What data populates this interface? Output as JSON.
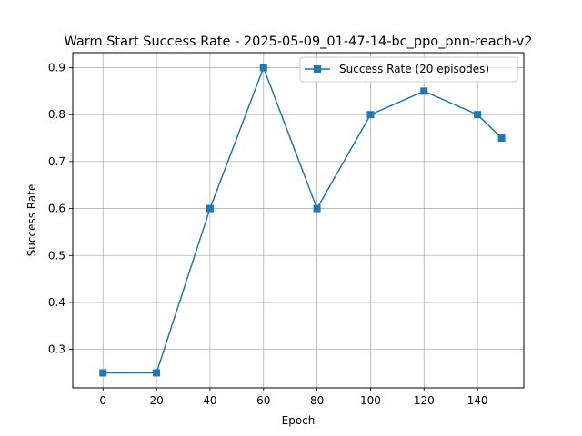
{
  "chart_data": {
    "type": "line",
    "title": "Warm Start Success Rate - 2025-05-09_01-47-14-bc_ppo_pnn-reach-v2",
    "xlabel": "Epoch",
    "ylabel": "Success Rate",
    "xlim": [
      -11.3,
      157.3
    ],
    "ylim": [
      0.218,
      0.932
    ],
    "xticks": [
      0,
      20,
      40,
      60,
      80,
      100,
      120,
      140
    ],
    "yticks": [
      0.3,
      0.4,
      0.5,
      0.6,
      0.7,
      0.8,
      0.9
    ],
    "grid": true,
    "legend_position": "top-right",
    "series": [
      {
        "name": "Success Rate (20 episodes)",
        "color": "#1f77b4",
        "marker": "square",
        "x": [
          0,
          20,
          40,
          60,
          80,
          100,
          120,
          140,
          149
        ],
        "y": [
          0.25,
          0.25,
          0.6,
          0.9,
          0.6,
          0.8,
          0.85,
          0.8,
          0.75
        ]
      }
    ]
  }
}
